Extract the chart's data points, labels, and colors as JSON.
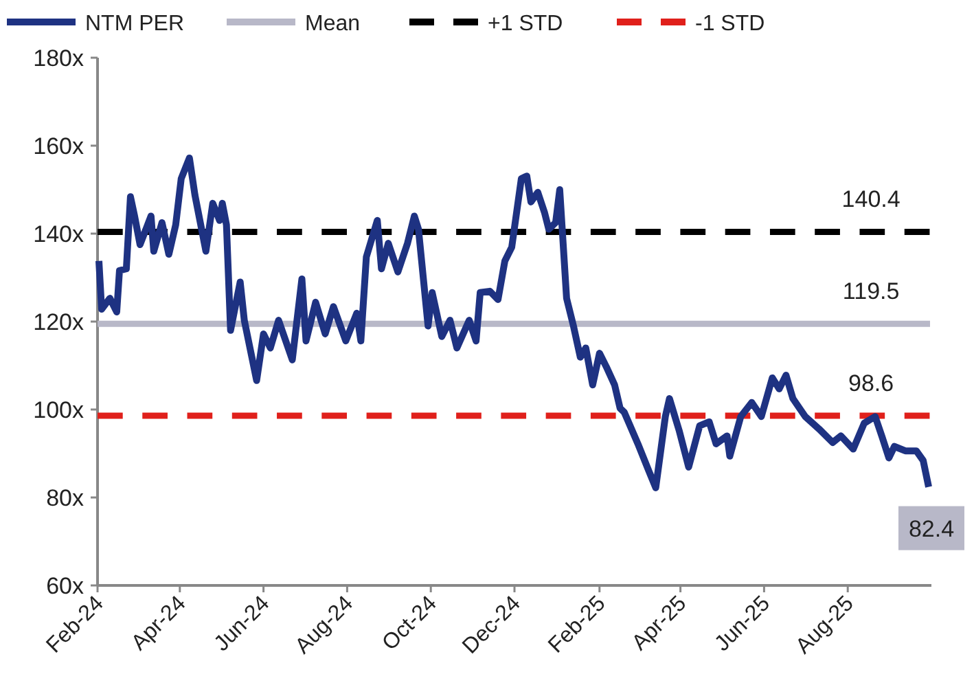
{
  "chart_data": {
    "type": "line",
    "xlim": [
      "2024-02-01",
      "2025-10-01"
    ],
    "xticks": [
      {
        "value": "2024-02-01",
        "label": "Feb-24"
      },
      {
        "value": "2024-04-01",
        "label": "Apr-24"
      },
      {
        "value": "2024-06-01",
        "label": "Jun-24"
      },
      {
        "value": "2024-08-01",
        "label": "Aug-24"
      },
      {
        "value": "2024-10-01",
        "label": "Oct-24"
      },
      {
        "value": "2024-12-01",
        "label": "Dec-24"
      },
      {
        "value": "2025-02-01",
        "label": "Feb-25"
      },
      {
        "value": "2025-04-01",
        "label": "Apr-25"
      },
      {
        "value": "2025-06-01",
        "label": "Jun-25"
      },
      {
        "value": "2025-08-01",
        "label": "Aug-25"
      }
    ],
    "ylim": [
      60,
      180
    ],
    "yticks": [
      {
        "value": 60,
        "label": "60x"
      },
      {
        "value": 80,
        "label": "80x"
      },
      {
        "value": 100,
        "label": "100x"
      },
      {
        "value": 120,
        "label": "120x"
      },
      {
        "value": 140,
        "label": "140x"
      },
      {
        "value": 160,
        "label": "160x"
      },
      {
        "value": 180,
        "label": "180x"
      }
    ],
    "grid": false,
    "legend": "top",
    "marker": "none",
    "series": [
      {
        "name": "NTM PER",
        "color": "#1e3282",
        "line_style": "solid",
        "x": [
          "2024-02-02",
          "2024-02-04",
          "2024-02-10",
          "2024-02-15",
          "2024-02-17",
          "2024-02-22",
          "2024-02-25",
          "2024-02-28",
          "2024-03-03",
          "2024-03-11",
          "2024-03-13",
          "2024-03-19",
          "2024-03-24",
          "2024-03-29",
          "2024-04-02",
          "2024-04-08",
          "2024-04-12",
          "2024-04-20",
          "2024-04-25",
          "2024-04-30",
          "2024-05-02",
          "2024-05-05",
          "2024-05-08",
          "2024-05-15",
          "2024-05-18",
          "2024-05-27",
          "2024-06-01",
          "2024-06-06",
          "2024-06-12",
          "2024-06-22",
          "2024-06-29",
          "2024-07-02",
          "2024-07-09",
          "2024-07-16",
          "2024-07-22",
          "2024-07-31",
          "2024-08-08",
          "2024-08-11",
          "2024-08-15",
          "2024-08-23",
          "2024-08-26",
          "2024-08-31",
          "2024-09-07",
          "2024-09-14",
          "2024-09-19",
          "2024-09-22",
          "2024-09-29",
          "2024-10-02",
          "2024-10-09",
          "2024-10-15",
          "2024-10-20",
          "2024-10-29",
          "2024-11-03",
          "2024-11-06",
          "2024-11-13",
          "2024-11-19",
          "2024-11-24",
          "2024-11-29",
          "2024-12-06",
          "2024-12-10",
          "2024-12-13",
          "2024-12-18",
          "2024-12-23",
          "2024-12-26",
          "2024-12-31",
          "2025-01-03",
          "2025-01-08",
          "2025-01-13",
          "2025-01-18",
          "2025-01-22",
          "2025-01-27",
          "2025-02-01",
          "2025-02-06",
          "2025-02-12",
          "2025-02-16",
          "2025-02-19",
          "2025-03-01",
          "2025-03-09",
          "2025-03-14",
          "2025-03-21",
          "2025-03-24",
          "2025-03-31",
          "2025-04-07",
          "2025-04-15",
          "2025-04-22",
          "2025-04-27",
          "2025-05-05",
          "2025-05-07",
          "2025-05-15",
          "2025-05-23",
          "2025-05-30",
          "2025-06-07",
          "2025-06-12",
          "2025-06-17",
          "2025-06-22",
          "2025-07-01",
          "2025-07-11",
          "2025-07-21",
          "2025-07-27",
          "2025-08-05",
          "2025-08-13",
          "2025-08-21",
          "2025-08-26",
          "2025-08-31",
          "2025-09-04",
          "2025-09-12",
          "2025-09-20",
          "2025-09-25",
          "2025-09-29"
        ],
        "values": [
          133.8,
          122.8,
          125.3,
          122.2,
          131.6,
          132,
          148.4,
          144,
          137.5,
          144,
          136,
          142.5,
          135.3,
          142,
          152.5,
          157.2,
          148.8,
          136,
          146.9,
          143,
          146.9,
          142,
          118,
          129,
          120.3,
          106.6,
          117.2,
          114,
          120.3,
          111.3,
          129.7,
          115.6,
          124.4,
          117.2,
          123.4,
          115.6,
          121.9,
          115.6,
          134.7,
          143,
          132,
          137.8,
          131.3,
          137.8,
          144,
          141,
          119,
          126.6,
          116.6,
          120.3,
          114,
          120.3,
          115.6,
          126.6,
          126.9,
          125,
          133.8,
          136.9,
          152.5,
          153.1,
          147.2,
          149.4,
          144.7,
          141,
          142.5,
          150,
          125.3,
          119,
          111.9,
          114,
          105.6,
          112.8,
          109.7,
          105.6,
          100.3,
          99.4,
          92.2,
          86,
          82.2,
          98.4,
          102.5,
          95.3,
          86.9,
          96.3,
          97.2,
          92.2,
          94,
          89.4,
          98.4,
          101.6,
          98.4,
          107.2,
          104.7,
          107.8,
          102.5,
          98.4,
          95.6,
          92.5,
          94,
          91,
          96.9,
          98.4,
          93.8,
          89,
          91.6,
          90.6,
          90.6,
          88.4,
          82.4
        ],
        "value_labels": [
          null,
          null,
          null,
          null,
          null,
          null,
          null,
          null,
          null,
          null,
          null,
          null,
          null,
          null,
          null,
          null,
          null,
          null,
          null,
          null,
          null,
          null,
          null,
          null,
          null,
          null,
          null,
          null,
          null,
          null,
          null,
          null,
          null,
          null,
          null,
          null,
          null,
          null,
          null,
          null,
          null,
          null,
          null,
          null,
          null,
          null,
          null,
          null,
          null,
          null,
          null,
          null,
          null,
          null,
          null,
          null,
          null,
          null,
          null,
          null,
          null,
          null,
          null,
          null,
          null,
          null,
          null,
          null,
          null,
          null,
          null,
          null,
          null,
          null,
          null,
          null,
          null,
          null,
          null,
          null,
          null,
          null,
          null,
          null,
          null,
          null,
          null,
          null,
          null,
          null,
          null,
          null,
          null,
          null,
          null,
          null,
          null,
          null,
          null,
          null,
          null,
          null,
          null,
          null,
          null,
          null,
          null,
          null,
          "82.4"
        ]
      },
      {
        "name": "Mean",
        "color": "#b8b8c8",
        "line_style": "solid",
        "x": [
          "2024-02-01",
          "2025-09-30"
        ],
        "values": [
          119.5,
          119.5
        ]
      },
      {
        "name": "+1 STD",
        "color": "#000000",
        "line_style": "dashed",
        "x": [
          "2024-02-01",
          "2025-09-30"
        ],
        "values": [
          140.4,
          140.4
        ]
      },
      {
        "name": "-1 STD",
        "color": "#e0201b",
        "line_style": "dashed",
        "x": [
          "2024-02-01",
          "2025-09-30"
        ],
        "values": [
          98.6,
          98.6
        ]
      }
    ],
    "annotations": [
      {
        "text": "140.4",
        "x": "2025-08-18",
        "y": 140.4
      },
      {
        "text": "119.5",
        "x": "2025-08-18",
        "y": 119.5
      },
      {
        "text": "98.6",
        "x": "2025-08-18",
        "y": 98.6
      }
    ]
  }
}
